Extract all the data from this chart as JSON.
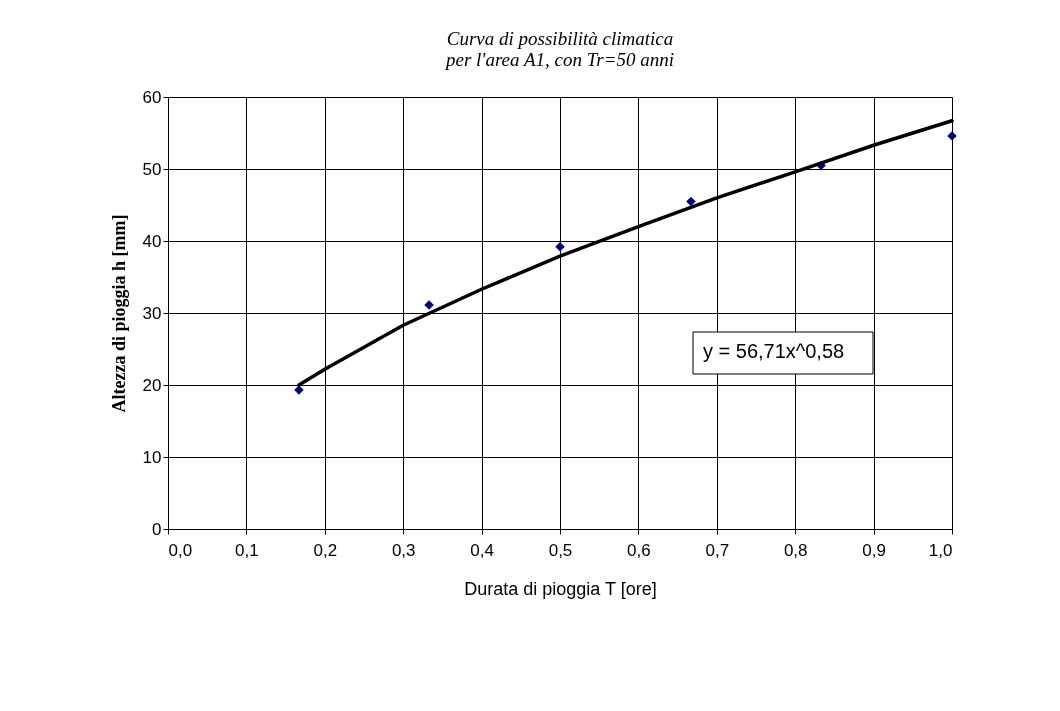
{
  "chart_data": {
    "type": "scatter",
    "title": "Curva di possibilità climatica\nper l'area A1, con Tr=50 anni",
    "xlabel": "Durata di pioggia T [ore]",
    "ylabel": "Altezza di pioggia h [mm]",
    "series": [
      {
        "type": "scatter",
        "color": "#000080",
        "marker": "diamond",
        "x": [
          0.167,
          0.333,
          0.5,
          0.667,
          0.833,
          1.0
        ],
        "values": [
          19.3,
          31.1,
          39.2,
          45.5,
          50.5,
          54.6
        ]
      },
      {
        "type": "line",
        "color": "#000000",
        "marker": "none",
        "line_style": "solid",
        "x": [
          0.167,
          0.2,
          0.3,
          0.4,
          0.5,
          0.6,
          0.7,
          0.8,
          0.9,
          1.0
        ],
        "values": [
          20.0,
          22.2,
          28.3,
          33.3,
          37.9,
          42.0,
          46.0,
          49.6,
          53.3,
          56.7
        ]
      }
    ],
    "xlim": [
      0,
      1
    ],
    "xticks": [
      {
        "value": 0,
        "label": "0,0"
      },
      {
        "value": 0.1,
        "label": "0,1"
      },
      {
        "value": 0.2,
        "label": "0,2"
      },
      {
        "value": 0.3,
        "label": "0,3"
      },
      {
        "value": 0.4,
        "label": "0,4"
      },
      {
        "value": 0.5,
        "label": "0,5"
      },
      {
        "value": 0.6,
        "label": "0,6"
      },
      {
        "value": 0.7,
        "label": "0,7"
      },
      {
        "value": 0.8,
        "label": "0,8"
      },
      {
        "value": 0.9,
        "label": "0,9"
      },
      {
        "value": 1.0,
        "label": "1,0"
      }
    ],
    "ylim": [
      0,
      60
    ],
    "yticks": [
      0,
      10,
      20,
      30,
      40,
      50,
      60
    ],
    "grid": true,
    "annotations": [
      "y = 56,71x^0,58"
    ]
  }
}
